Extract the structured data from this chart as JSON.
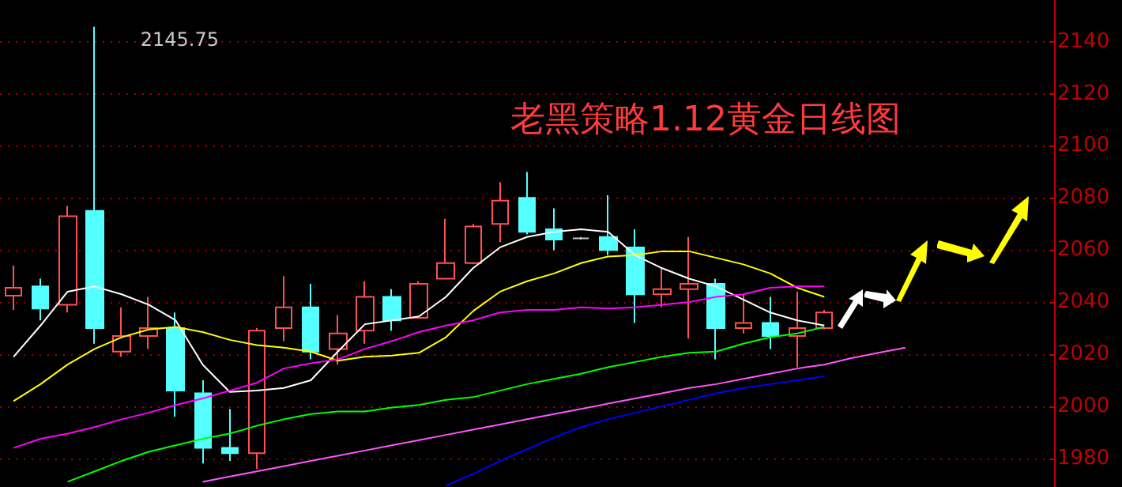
{
  "chart_data": {
    "type": "candlestick",
    "title": "老黑策略1.12黄金日线图",
    "categories": [
      null,
      null,
      null,
      null,
      null,
      null,
      null,
      null,
      null,
      null,
      null,
      null,
      null,
      null,
      null,
      null,
      null,
      null,
      null,
      null,
      null,
      null,
      null,
      null,
      null,
      null,
      null,
      null,
      null,
      null,
      null,
      null,
      null,
      null,
      null,
      null,
      null,
      null,
      null
    ],
    "ohlc": [
      [
        2042.5,
        2054,
        2037,
        2045.5
      ],
      [
        2046,
        2049,
        2033,
        2037.5
      ],
      [
        2039,
        2077,
        2036,
        2073
      ],
      [
        2075,
        2145.75,
        2024,
        2030
      ],
      [
        2021,
        2038,
        2019,
        2027
      ],
      [
        2027,
        2042,
        2022,
        2030
      ],
      [
        2030,
        2036,
        1996,
        2006
      ],
      [
        2005,
        2010,
        1978,
        1984
      ],
      [
        1984,
        1999,
        1979,
        1982
      ],
      [
        1982,
        2030,
        1976,
        2029
      ],
      [
        2030,
        2050,
        2025,
        2038
      ],
      [
        2038,
        2047,
        2018,
        2021
      ],
      [
        2022,
        2035,
        2016,
        2028
      ],
      [
        2029,
        2048,
        2024,
        2042
      ],
      [
        2042,
        2045,
        2029,
        2033
      ],
      [
        2034,
        2048,
        2034,
        2047
      ],
      [
        2049,
        2072,
        2049,
        2055
      ],
      [
        2055,
        2070,
        2054.5,
        2069
      ],
      [
        2070,
        2086,
        2063,
        2079
      ],
      [
        2080,
        2090,
        2066,
        2067
      ],
      [
        2068,
        2076,
        2060,
        2064
      ],
      [
        2064.5,
        2065,
        2064,
        2064.5
      ],
      [
        2065,
        2081,
        2058,
        2060
      ],
      [
        2061,
        2068,
        2032,
        2043
      ],
      [
        2043,
        2053,
        2038,
        2045
      ],
      [
        2045,
        2065,
        2026,
        2047
      ],
      [
        2047,
        2049,
        2018,
        2030
      ],
      [
        2030,
        2043,
        2028,
        2032
      ],
      [
        2032,
        2042,
        2022,
        2027
      ],
      [
        2027,
        2044,
        2015,
        2030
      ],
      [
        2030,
        2037,
        2029.5,
        2036
      ],
      null,
      null,
      null,
      null,
      null,
      null,
      null,
      null
    ],
    "colors": [
      "#ff5050",
      "#54ffff",
      "#ff5050",
      "#54ffff",
      "#ff5050",
      "#ff5050",
      "#54ffff",
      "#54ffff",
      "#54ffff",
      "#ff5050",
      "#ff5050",
      "#54ffff",
      "#ff5050",
      "#ff5050",
      "#54ffff",
      "#ff5050",
      "#ff5050",
      "#ff5050",
      "#ff5050",
      "#54ffff",
      "#54ffff",
      "#c8c8c8",
      "#54ffff",
      "#54ffff",
      "#ff5050",
      "#ff5050",
      "#54ffff",
      "#ff5050",
      "#54ffff",
      "#ff5050",
      "#ff5050",
      null,
      null,
      null,
      null,
      null,
      null,
      null,
      null
    ],
    "series": [
      {
        "type": "line",
        "color": "#ffffff",
        "values": [
          2019,
          2031,
          2044,
          2046,
          2043,
          2039,
          2033,
          2016,
          2005.5,
          2006,
          2007,
          2010,
          2021,
          2031.5,
          2033,
          2034.5,
          2042,
          2053,
          2061,
          2065,
          2067,
          2068,
          2067,
          2058,
          2053,
          2049,
          2046,
          2041,
          2036,
          2033,
          2031,
          null,
          null,
          null,
          null,
          null,
          null,
          null,
          null
        ]
      },
      {
        "type": "line",
        "color": "#ffff00",
        "values": [
          2002,
          2008.5,
          2016,
          2022,
          2026.5,
          2029.5,
          2030.5,
          2028.5,
          2025.5,
          2023.5,
          2022.5,
          2021,
          2017.5,
          2019,
          2019.5,
          2020.5,
          2026.5,
          2036.5,
          2044,
          2048,
          2051,
          2055,
          2057.5,
          2058,
          2059.5,
          2059.5,
          2057,
          2054.5,
          2051,
          2045.5,
          2042,
          null,
          null,
          null,
          null,
          null,
          null,
          null,
          null
        ]
      },
      {
        "type": "line",
        "color": "#ff00ff",
        "values": [
          1984,
          1987.5,
          1989.5,
          1992,
          1995,
          1997.5,
          2000.5,
          2003,
          2006,
          2009,
          2014.5,
          2016.5,
          2018,
          2022,
          2025,
          2028.5,
          2031,
          2033,
          2036,
          2037,
          2037,
          2038,
          2037.5,
          2038,
          2039,
          2040,
          2042,
          2043,
          2045.5,
          2046,
          2046,
          null,
          null,
          null,
          null,
          null,
          null,
          null,
          null
        ]
      },
      {
        "type": "line",
        "color": "#00ff00",
        "values": [
          null,
          null,
          1971,
          1975,
          1979,
          1982.5,
          1985,
          1987.5,
          1989.5,
          1992.5,
          1995,
          1997,
          1998,
          1998,
          1999.5,
          2000.5,
          2002.5,
          2003.5,
          2006,
          2008.5,
          2010.5,
          2012.5,
          2015,
          2017,
          2019,
          2020.5,
          2021,
          2024,
          2026.5,
          2028,
          2030.5,
          null,
          null,
          null,
          null,
          null,
          null,
          null,
          null
        ]
      },
      {
        "type": "line",
        "color": "#ff55ff",
        "values": [
          null,
          null,
          null,
          null,
          null,
          null,
          null,
          1971,
          1973,
          1975,
          1977,
          1979,
          1981,
          1983,
          1985,
          1987,
          1989,
          1991,
          1993,
          1995,
          1997,
          1999,
          2001,
          2003,
          2005,
          2007,
          2008.5,
          2010.5,
          2012.5,
          2014.5,
          2016,
          2018.5,
          2020.5,
          2022.5,
          null,
          null,
          null,
          null,
          null
        ]
      },
      {
        "type": "line",
        "color": "#0000ff",
        "values": [
          null,
          null,
          null,
          null,
          null,
          null,
          null,
          null,
          null,
          null,
          null,
          null,
          null,
          null,
          null,
          null,
          1969.5,
          1974,
          1979,
          1983.5,
          1988,
          1992,
          1995,
          1997.5,
          2000,
          2002.5,
          2005,
          2007,
          2008.5,
          2010,
          2011.5,
          null,
          null,
          null,
          null,
          null,
          null,
          null,
          null
        ]
      }
    ],
    "annotations": [
      "2145.75"
    ],
    "ylim": [
      1969,
      2156
    ],
    "yticks": [
      1980,
      2000,
      2020,
      2040,
      2060,
      2080,
      2100,
      2120,
      2140
    ],
    "grid": "y",
    "marker": "none",
    "line_style": "solid",
    "tick_labels": "y"
  }
}
